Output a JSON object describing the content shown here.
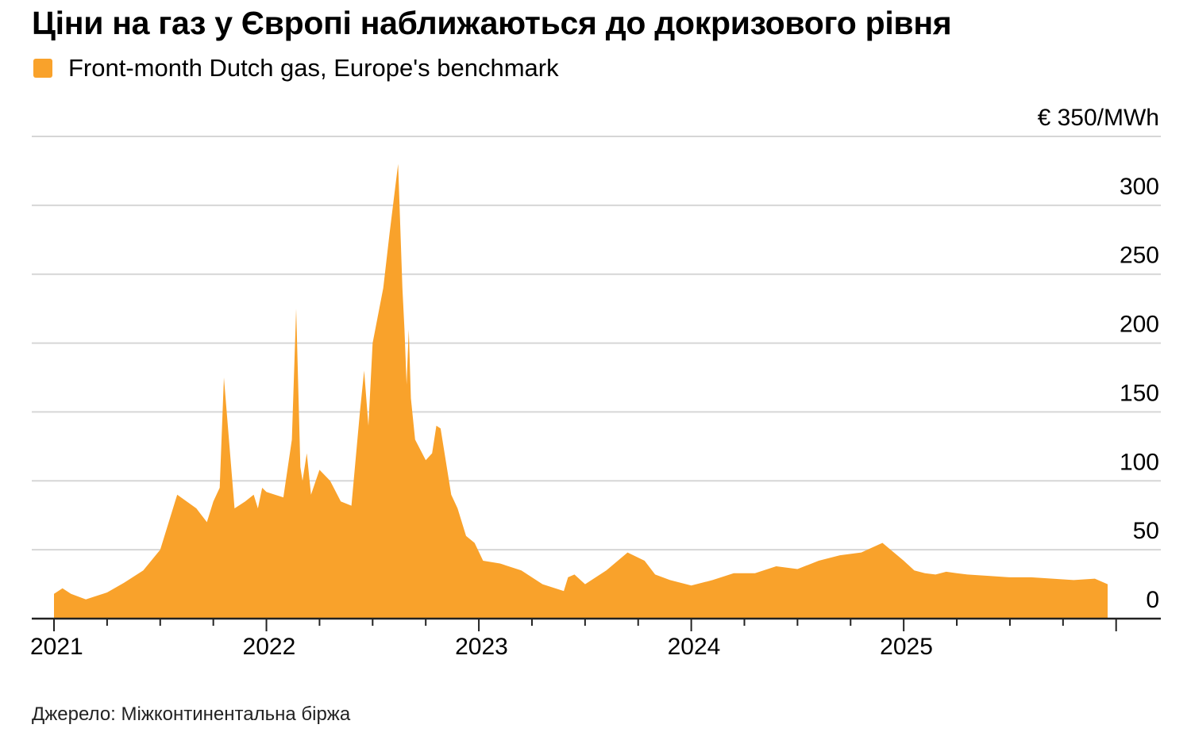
{
  "title": "Ціни на газ у Європі наближаються до докризового рівня",
  "legend": {
    "label": "Front-month Dutch gas, Europe's benchmark",
    "color": "#F9A22B"
  },
  "source": "Джерело: Міжконтинентальна біржа",
  "chart_data": {
    "type": "area",
    "title": "Ціни на газ у Європі наближаються до докризового рівня",
    "series": [
      {
        "name": "Front-month Dutch gas, Europe's benchmark",
        "color": "#F9A22B"
      }
    ],
    "y_top_label": "€ 350/MWh",
    "ylim": [
      0,
      350
    ],
    "yticks": [
      0,
      50,
      100,
      150,
      200,
      250,
      300
    ],
    "xlim": [
      2021.0,
      2026.0
    ],
    "xtick_labels": [
      {
        "value": 2021,
        "label": "2021"
      },
      {
        "value": 2022,
        "label": "2022"
      },
      {
        "value": 2023,
        "label": "2023"
      },
      {
        "value": 2024,
        "label": "2024"
      },
      {
        "value": 2025,
        "label": "2025"
      }
    ],
    "grid": "horizontal",
    "axis_side": "right",
    "x": [
      2021.0,
      2021.04,
      2021.08,
      2021.15,
      2021.25,
      2021.33,
      2021.42,
      2021.5,
      2021.58,
      2021.67,
      2021.72,
      2021.75,
      2021.78,
      2021.8,
      2021.85,
      2021.9,
      2021.94,
      2021.96,
      2021.98,
      2022.0,
      2022.04,
      2022.08,
      2022.12,
      2022.14,
      2022.16,
      2022.17,
      2022.19,
      2022.21,
      2022.25,
      2022.3,
      2022.35,
      2022.4,
      2022.44,
      2022.46,
      2022.48,
      2022.5,
      2022.55,
      2022.58,
      2022.62,
      2022.64,
      2022.65,
      2022.66,
      2022.67,
      2022.68,
      2022.7,
      2022.75,
      2022.78,
      2022.8,
      2022.82,
      2022.87,
      2022.9,
      2022.94,
      2022.98,
      2023.02,
      2023.1,
      2023.2,
      2023.3,
      2023.4,
      2023.42,
      2023.45,
      2023.5,
      2023.6,
      2023.7,
      2023.78,
      2023.83,
      2023.9,
      2024.0,
      2024.1,
      2024.2,
      2024.3,
      2024.4,
      2024.5,
      2024.6,
      2024.7,
      2024.8,
      2024.9,
      2025.0,
      2025.05,
      2025.1,
      2025.15,
      2025.2,
      2025.25,
      2025.3,
      2025.4,
      2025.5,
      2025.6,
      2025.7,
      2025.8,
      2025.9,
      2025.96
    ],
    "values": [
      18,
      22,
      18,
      14,
      19,
      26,
      35,
      50,
      90,
      80,
      70,
      85,
      95,
      175,
      80,
      85,
      90,
      80,
      95,
      92,
      90,
      88,
      130,
      225,
      110,
      100,
      120,
      90,
      108,
      100,
      85,
      82,
      150,
      180,
      140,
      200,
      240,
      280,
      330,
      240,
      210,
      170,
      210,
      160,
      130,
      115,
      120,
      140,
      138,
      90,
      80,
      60,
      55,
      42,
      40,
      35,
      25,
      20,
      30,
      32,
      25,
      35,
      48,
      42,
      32,
      28,
      24,
      28,
      33,
      33,
      38,
      36,
      42,
      46,
      48,
      55,
      42,
      35,
      33,
      32,
      34,
      33,
      32,
      31,
      30,
      30,
      29,
      28,
      29,
      25
    ]
  }
}
